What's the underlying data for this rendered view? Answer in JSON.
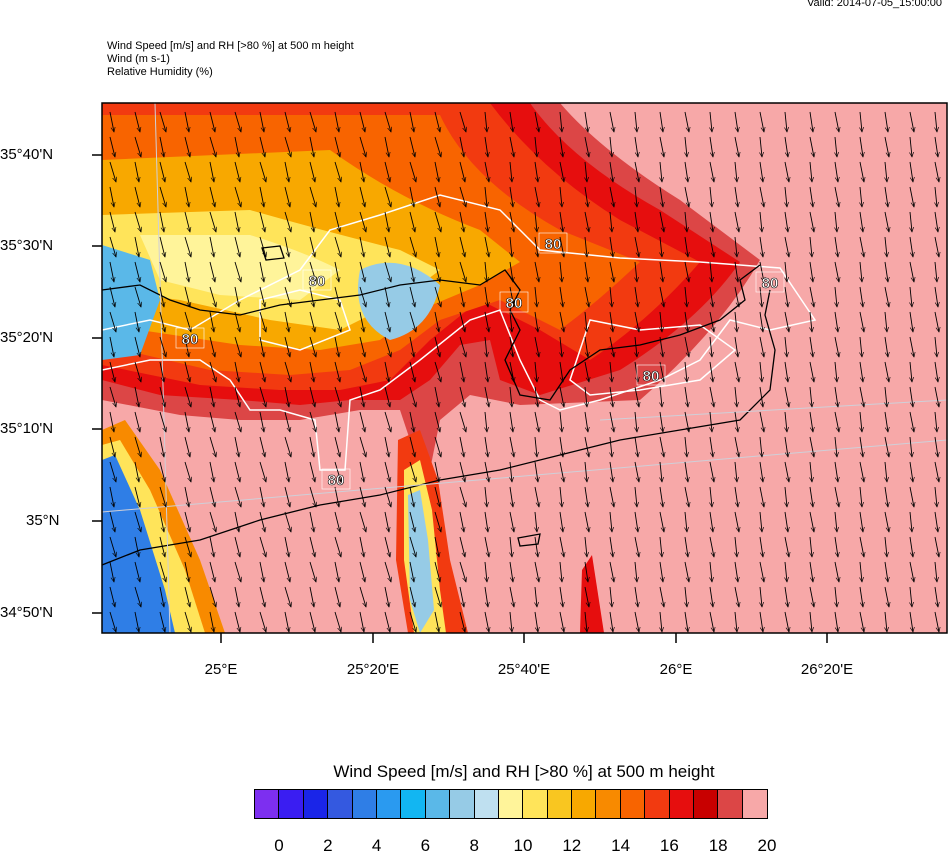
{
  "valid_time": "Valid: 2014-07-05_15:00:00",
  "header": {
    "line1": "Wind Speed [m/s] and RH [>80 %] at 500 m height",
    "line2": "Wind   (m s-1)",
    "line3": "Relative Humidity   (%)"
  },
  "lat_labels": [
    "35°40'N",
    "35°30'N",
    "35°20'N",
    "35°10'N",
    "35°N",
    "34°50'N"
  ],
  "lon_labels": [
    "25°E",
    "25°20'E",
    "25°40'E",
    "26°E",
    "26°20'E"
  ],
  "contour_label": "80",
  "colorbar": {
    "title": "Wind Speed [m/s] and RH [>80 %] at 500 m height",
    "labels": [
      "0",
      "2",
      "4",
      "6",
      "8",
      "10",
      "12",
      "14",
      "16",
      "18",
      "20"
    ],
    "colors": [
      "#7d2ff0",
      "#3a1df2",
      "#1a25e8",
      "#3459e0",
      "#2f7ee6",
      "#2a9af0",
      "#12b6f2",
      "#5ab8e8",
      "#96cbe6",
      "#bfe0f0",
      "#fff49a",
      "#ffe45a",
      "#f9c620",
      "#f8a800",
      "#f88a00",
      "#f86400",
      "#f23a10",
      "#e60e0e",
      "#c80000",
      "#dc4646",
      "#f7a8a8"
    ]
  }
}
